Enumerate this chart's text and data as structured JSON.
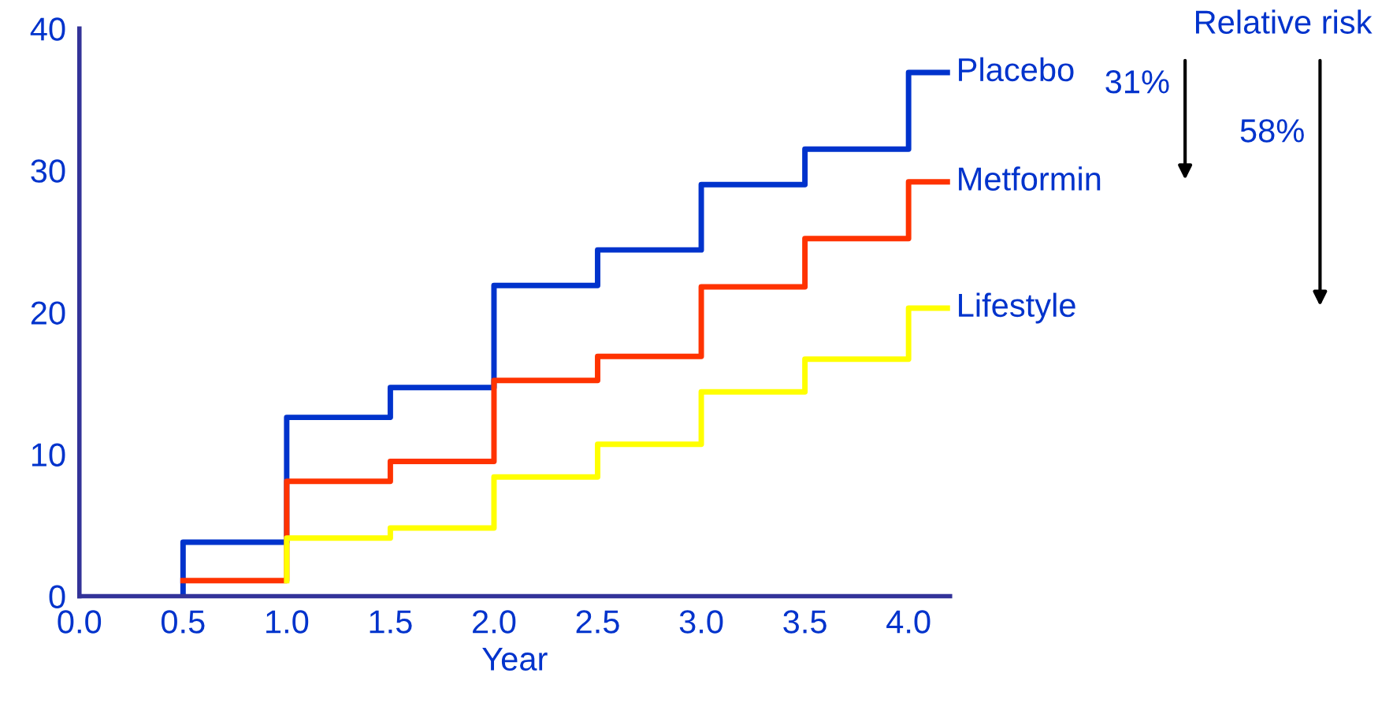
{
  "chart_data": {
    "type": "step",
    "title": "Relative risk",
    "xlabel": "Year",
    "xlim": [
      0,
      4.2
    ],
    "xticks": [
      {
        "value": 0,
        "label": "0.0"
      },
      {
        "value": 0.5,
        "label": "0.5"
      },
      {
        "value": 1,
        "label": "1.0"
      },
      {
        "value": 1.5,
        "label": "1.5"
      },
      {
        "value": 2,
        "label": "2.0"
      },
      {
        "value": 2.5,
        "label": "2.5"
      },
      {
        "value": 3,
        "label": "3.0"
      },
      {
        "value": 3.5,
        "label": "3.5"
      },
      {
        "value": 4,
        "label": "4.0"
      }
    ],
    "ylim": [
      0,
      40
    ],
    "yticks": [
      0,
      10,
      20,
      30,
      40
    ],
    "grid": false,
    "legend": false,
    "line_style": "solid",
    "marker": "none",
    "series": [
      {
        "name": "Placebo",
        "color": "#0033cc",
        "x": [
          0.5,
          0.5,
          1.0,
          1.5,
          2.0,
          2.5,
          3.0,
          3.5,
          4.0,
          4.2
        ],
        "values": [
          0,
          3.8,
          12.6,
          14.7,
          21.9,
          24.4,
          29.0,
          31.5,
          36.9,
          36.9
        ]
      },
      {
        "name": "Metformin",
        "color": "#ff3300",
        "x": [
          0.5,
          1.0,
          1.5,
          2.0,
          2.5,
          3.0,
          3.5,
          4.0,
          4.2
        ],
        "values": [
          1.1,
          8.1,
          9.5,
          15.2,
          16.9,
          21.8,
          25.2,
          29.2,
          29.2
        ]
      },
      {
        "name": "Lifestyle",
        "color": "#ffff00",
        "x": [
          1.0,
          1.0,
          1.5,
          2.0,
          2.5,
          3.0,
          3.5,
          4.0,
          4.2
        ],
        "values": [
          1.1,
          4.1,
          4.8,
          8.4,
          10.7,
          14.4,
          16.7,
          20.3,
          20.3
        ]
      }
    ],
    "annotations": [
      "31%",
      "58%"
    ]
  }
}
